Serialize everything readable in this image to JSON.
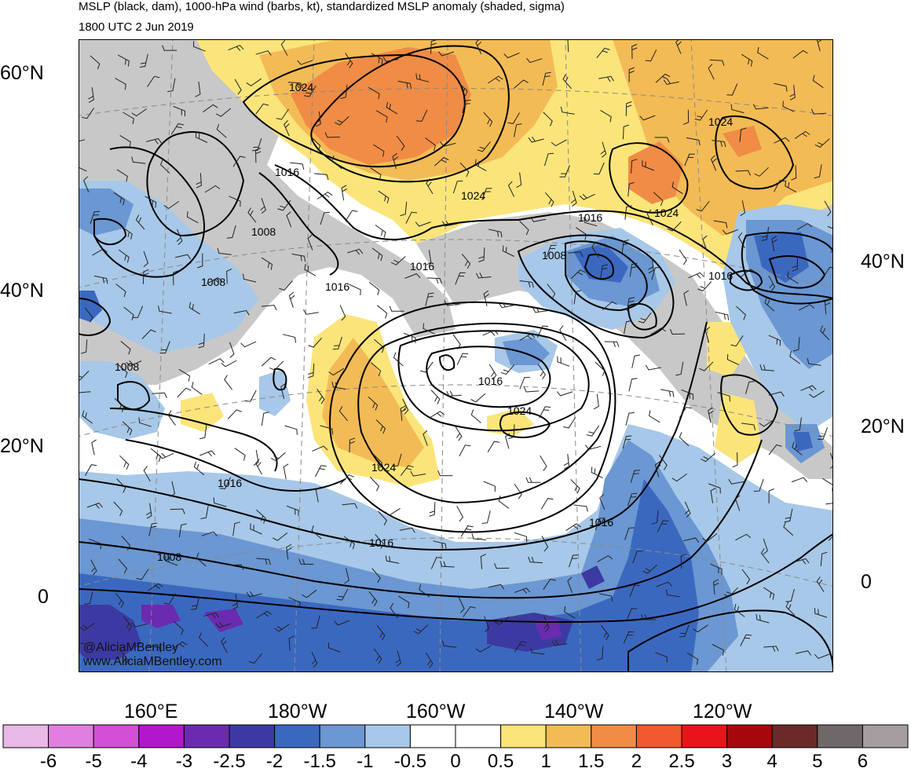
{
  "header": {
    "title": "MSLP (black, dam), 1000-hPa wind (barbs, kt), standardized MSLP anomaly (shaded, sigma)",
    "valid_time": "1800 UTC 2 Jun 2019"
  },
  "axes": {
    "left_lat": [
      "60°N",
      "40°N",
      "20°N",
      "0"
    ],
    "right_lat": [
      "40°N",
      "20°N",
      "0"
    ],
    "bottom_lon": [
      "160°E",
      "180°W",
      "160°W",
      "140°W",
      "120°W"
    ]
  },
  "contour_labels": [
    "1024",
    "1024",
    "1024",
    "1024",
    "1016",
    "1016",
    "1016",
    "1016",
    "1016",
    "1016",
    "1016",
    "1016",
    "1008",
    "1008",
    "1008",
    "1008",
    "1008",
    "1024",
    "1024"
  ],
  "credits": {
    "handle": "@AliciaMBentley",
    "website": "www.AliciaMBentley.com"
  },
  "colorbar": {
    "labels": [
      "-6",
      "-5",
      "-4",
      "-3",
      "-2.5",
      "-2",
      "-1.5",
      "-1",
      "-0.5",
      "0",
      "0.5",
      "1",
      "1.5",
      "2",
      "2.5",
      "3",
      "4",
      "5",
      "6"
    ],
    "colors": [
      "#e8b8e6",
      "#e07fe0",
      "#d24fd6",
      "#b217cc",
      "#6a2bb0",
      "#3c3aa2",
      "#3b68bf",
      "#6b97d2",
      "#a7c8e8",
      "#ffffff",
      "#ffffff",
      "#fbe57a",
      "#f3bb55",
      "#f08c45",
      "#f15a2f",
      "#e8141a",
      "#a6070d",
      "#6b2a2a",
      "#6f6868",
      "#a69e9e"
    ]
  },
  "map_colors": {
    "land": "#c8c8c8",
    "contour": "#000000",
    "graticule": "#8a8a8a"
  }
}
